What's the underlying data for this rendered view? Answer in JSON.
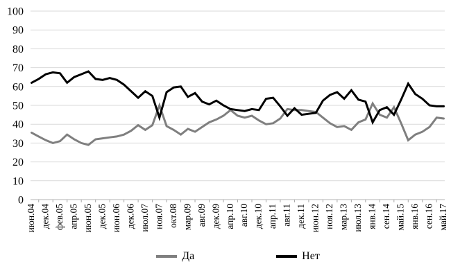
{
  "chart_data": {
    "type": "line",
    "title": "",
    "xlabel": "",
    "ylabel": "",
    "ylim": [
      0,
      100
    ],
    "yticks": [
      0,
      10,
      20,
      30,
      40,
      50,
      60,
      70,
      80,
      90,
      100
    ],
    "grid": true,
    "gridline_color": "#d9d9d9",
    "axis_line_color": "#b3b3b3",
    "tick_color": "#a6a6a6",
    "legend_position": "bottom",
    "points_per_label": 2,
    "x_labels": [
      "июн.04",
      "дек.04",
      "фев.05",
      "апр.05",
      "июн.05",
      "дек.05",
      "июн.06",
      "дек.06",
      "июл.07",
      "ноя.07",
      "окт.08",
      "мар.09",
      "авг.09",
      "дек.09",
      "апр.10",
      "авг.10",
      "дек.10",
      "апр.11",
      "авг.11",
      "дек.11",
      "июн.12",
      "ноя.12",
      "мар.13",
      "июл.13",
      "янв.14",
      "сен.14",
      "май.15",
      "янв.16",
      "сен.16",
      "май.17"
    ],
    "series": [
      {
        "name": "Да",
        "color": "#7f7f7f",
        "values": [
          35.5,
          33.5,
          31.5,
          30,
          31,
          34.5,
          32,
          30,
          29,
          32,
          32.5,
          33,
          33.5,
          34.5,
          36.5,
          39.5,
          37,
          39.5,
          50,
          39,
          37,
          34.5,
          37.5,
          36,
          38.5,
          41,
          42.5,
          44.5,
          47.5,
          44.5,
          43.5,
          44.5,
          42,
          40,
          40.5,
          43,
          48,
          47.5,
          47.5,
          47,
          46.5,
          43.5,
          40.5,
          38.5,
          39,
          37,
          41,
          42.5,
          51,
          45,
          43.5,
          49,
          40.5,
          31.5,
          34.5,
          36,
          38.5,
          43.5,
          43
        ]
      },
      {
        "name": "Нет",
        "color": "#000000",
        "values": [
          62,
          64,
          66.5,
          67.5,
          67,
          62,
          65,
          66.5,
          68,
          64,
          63.5,
          64.5,
          63.5,
          61,
          57.5,
          54,
          57.5,
          55,
          43.5,
          57,
          59.5,
          60,
          54.5,
          56.5,
          52,
          50.5,
          52.5,
          50,
          48,
          47.5,
          47,
          48,
          47.5,
          53.5,
          54,
          49.5,
          44.5,
          48.5,
          45,
          45.5,
          46,
          52.5,
          55.5,
          57,
          53.5,
          58,
          53,
          52,
          41,
          47.5,
          49,
          45,
          53,
          61.5,
          56,
          53.5,
          50,
          49.5,
          49.5
        ]
      }
    ]
  }
}
